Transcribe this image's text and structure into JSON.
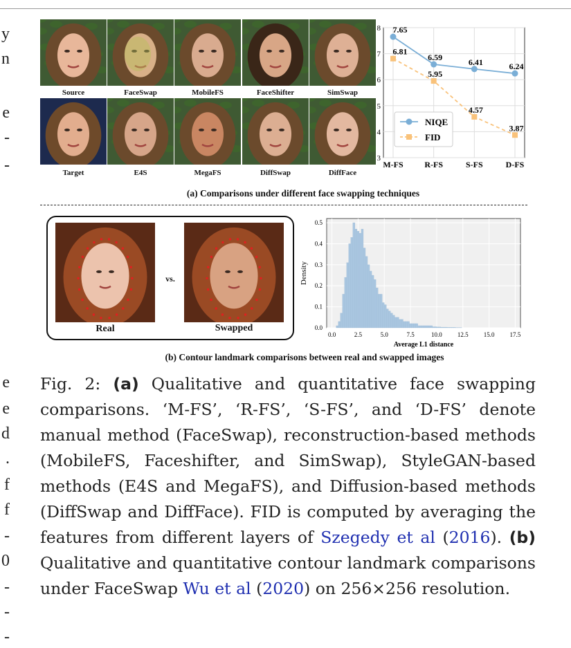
{
  "left_margin_fragments": [
    "y",
    "n",
    "e",
    "-",
    "-",
    "e",
    "e",
    "d",
    ".",
    "f",
    "f",
    "-",
    "0",
    "-",
    "-",
    "-"
  ],
  "panel_a": {
    "row1_labels": [
      "Source",
      "FaceSwap",
      "MobileFS",
      "FaceShifter",
      "SimSwap"
    ],
    "row2_labels": [
      "Target",
      "E4S",
      "MegaFS",
      "DiffSwap",
      "DiffFace"
    ],
    "caption": "(a) Comparisons under different face swapping techniques"
  },
  "panel_b": {
    "real_label": "Real",
    "vs_label": "vs.",
    "swapped_label": "Swapped",
    "caption": "(b) Contour landmark comparisons between real and swapped images"
  },
  "figure_caption": {
    "prefix": "Fig. 2: ",
    "a_marker": "(a)",
    "text1": " Qualitative and quantitative face swapping comparisons. ‘M-FS’, ‘R-FS’, ‘S-FS’, and ‘D-FS’ denote manual method (FaceSwap), reconstruction-based methods (MobileFS, Faceshifter, and SimSwap), StyleGAN-based methods (E4S and MegaFS), and Diffusion-based methods (DiffSwap and DiffFace). FID is computed by averaging the features from different layers of ",
    "cite1_text": "Szegedy et al",
    "cite1_open": " (",
    "cite1_year": "2016",
    "cite1_close": "). ",
    "b_marker": "(b)",
    "text2": " Qualitative and quantitative contour landmark comparisons under FaceSwap ",
    "cite2_text": "Wu et al",
    "cite2_open": " (",
    "cite2_year": "2020",
    "text3": ") on 256×256 resolution."
  },
  "chart_data": [
    {
      "type": "line",
      "categories": [
        "M-FS",
        "R-FS",
        "S-FS",
        "D-FS"
      ],
      "series": [
        {
          "name": "NIQE",
          "values": [
            7.65,
            6.59,
            6.41,
            6.24
          ],
          "color": "#7aaed6",
          "style": "solid",
          "marker": "circle"
        },
        {
          "name": "FID",
          "values": [
            6.81,
            5.95,
            4.57,
            3.87
          ],
          "color": "#f9c27a",
          "style": "dashed",
          "marker": "square"
        }
      ],
      "data_labels": [
        [
          "7.65",
          "6.59",
          "6.41",
          "6.24"
        ],
        [
          "6.81",
          "5.95",
          "4.57",
          "3.87"
        ]
      ],
      "yticks": [
        "3",
        "4",
        "5",
        "6",
        "7",
        "8"
      ],
      "ylim": [
        3,
        8
      ],
      "grid": true,
      "legend": "bottom-left"
    },
    {
      "type": "bar",
      "subtype": "histogram",
      "xlabel": "Average L1 distance",
      "ylabel": "Density",
      "xticks": [
        "0.0",
        "2.5",
        "5.0",
        "7.5",
        "10.0",
        "12.5",
        "15.0",
        "17.5"
      ],
      "yticks": [
        "0.0",
        "0.1",
        "0.2",
        "0.3",
        "0.4",
        "0.5"
      ],
      "xlim": [
        -0.5,
        18
      ],
      "ylim": [
        0,
        0.52
      ],
      "bin_width": 0.2,
      "bin_start": 0.4,
      "values": [
        0.01,
        0.03,
        0.07,
        0.16,
        0.24,
        0.31,
        0.4,
        0.43,
        0.5,
        0.47,
        0.46,
        0.45,
        0.47,
        0.38,
        0.34,
        0.3,
        0.27,
        0.25,
        0.23,
        0.19,
        0.16,
        0.16,
        0.12,
        0.11,
        0.09,
        0.08,
        0.07,
        0.06,
        0.05,
        0.05,
        0.04,
        0.04,
        0.03,
        0.03,
        0.03,
        0.02,
        0.02,
        0.02,
        0.02,
        0.01,
        0.01,
        0.01,
        0.01,
        0.01,
        0.01,
        0.01,
        0.005,
        0.005,
        0.004,
        0.004,
        0.003,
        0.003,
        0.003,
        0.002,
        0.002,
        0.002,
        0.002,
        0.001,
        0.001,
        0.001
      ],
      "color": "#a9c6e0",
      "grid": true
    }
  ]
}
